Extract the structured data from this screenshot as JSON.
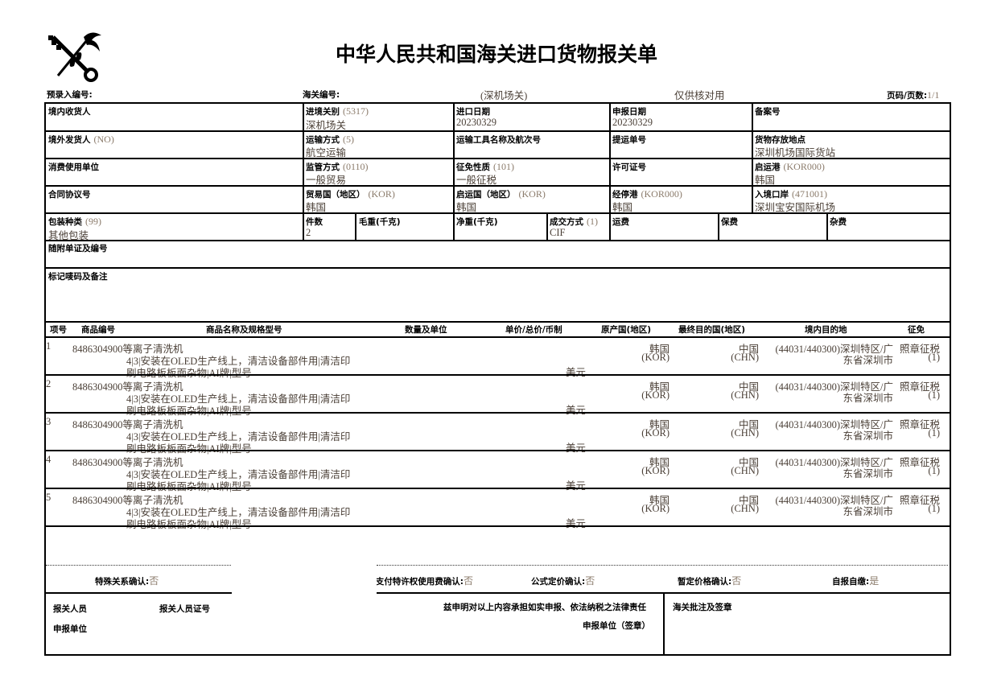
{
  "title": "中华人民共和国海关进口货物报关单",
  "logo": "customs-emblem",
  "top": {
    "pre_entry_label": "预录入编号:",
    "customs_no_label": "海关编号:",
    "customs_office": "(深机场关)",
    "check_note": "仅供核对用",
    "page_label": "页码/页数:",
    "page_value": "1/1"
  },
  "fields": {
    "consignee": {
      "label": "境内收货人"
    },
    "entry_customs": {
      "label": "进境关别",
      "code": "(5317)",
      "value": "深机场关"
    },
    "import_date": {
      "label": "进口日期",
      "value": "20230329"
    },
    "declare_date": {
      "label": "申报日期",
      "value": "20230329"
    },
    "record_no": {
      "label": "备案号"
    },
    "shipper": {
      "label": "境外发货人",
      "code": "(NO)"
    },
    "transport_mode": {
      "label": "运输方式",
      "code": "(5)",
      "value": "航空运输"
    },
    "vessel": {
      "label": "运输工具名称及航次号"
    },
    "bill_no": {
      "label": "提运单号"
    },
    "storage": {
      "label": "货物存放地点",
      "value": "深圳机场国际货站"
    },
    "consumer": {
      "label": "消费使用单位"
    },
    "supervision": {
      "label": "监管方式",
      "code": "(0110)",
      "value": "一般贸易"
    },
    "levy_nature": {
      "label": "征免性质",
      "code": "(101)",
      "value": "一般征税"
    },
    "license_no": {
      "label": "许可证号"
    },
    "departure_port": {
      "label": "启运港",
      "code": "(KOR000)",
      "value": "韩国"
    },
    "contract_no": {
      "label": "合同协议号"
    },
    "trade_country": {
      "label": "贸易国（地区）",
      "code": "(KOR)",
      "value": "韩国"
    },
    "departure_country": {
      "label": "启运国（地区）",
      "code": "(KOR)",
      "value": "韩国"
    },
    "stop_port": {
      "label": "经停港",
      "code": "(KOR000)",
      "value": "韩国"
    },
    "entry_port": {
      "label": "入境口岸",
      "code": "(471001)",
      "value": "深圳宝安国际机场"
    },
    "package_type": {
      "label": "包装种类",
      "code": "(99)",
      "value": "其他包装"
    },
    "pieces": {
      "label": "件数",
      "value": "2"
    },
    "gross_weight": {
      "label": "毛重(千克)"
    },
    "net_weight": {
      "label": "净重(千克)"
    },
    "trade_terms": {
      "label": "成交方式",
      "code": "(1)",
      "value": "CIF"
    },
    "freight": {
      "label": "运费"
    },
    "insurance": {
      "label": "保费"
    },
    "misc": {
      "label": "杂费"
    },
    "attached_docs": {
      "label": "随附单证及编号"
    },
    "marks": {
      "label": "标记唛码及备注"
    }
  },
  "items_header": [
    "项号",
    "商品编号",
    "商品名称及规格型号",
    "数量及单位",
    "单价/总价/币制",
    "原产国(地区)",
    "最终目的国(地区)",
    "境内目的地",
    "征免"
  ],
  "items": [
    {
      "no": "1",
      "code_name": "8486304900等离子清洗机",
      "spec1": "4|3|安装在OLED生产线上，清洁设备部件用|清洁印",
      "spec2": "刷电路板板面杂物|AI牌|型号",
      "currency": "美元",
      "origin": "韩国",
      "origin_code": "(KOR)",
      "dest": "中国",
      "dest_code": "(CHN)",
      "domestic1": "(44031/440300)深圳特区/广",
      "domestic2": "东省深圳市",
      "levy": "照章征税",
      "levy_code": "(1)"
    },
    {
      "no": "2",
      "code_name": "8486304900等离子清洗机",
      "spec1": "4|3|安装在OLED生产线上，清洁设备部件用|清洁印",
      "spec2": "刷电路板板面杂物|AI牌|型号",
      "currency": "美元",
      "origin": "韩国",
      "origin_code": "(KOR)",
      "dest": "中国",
      "dest_code": "(CHN)",
      "domestic1": "(44031/440300)深圳特区/广",
      "domestic2": "东省深圳市",
      "levy": "照章征税",
      "levy_code": "(1)"
    },
    {
      "no": "3",
      "code_name": "8486304900等离子清洗机",
      "spec1": "4|3|安装在OLED生产线上，清洁设备部件用|清洁印",
      "spec2": "刷电路板板面杂物|AI牌|型号",
      "currency": "美元",
      "origin": "韩国",
      "origin_code": "(KOR)",
      "dest": "中国",
      "dest_code": "(CHN)",
      "domestic1": "(44031/440300)深圳特区/广",
      "domestic2": "东省深圳市",
      "levy": "照章征税",
      "levy_code": "(1)"
    },
    {
      "no": "4",
      "code_name": "8486304900等离子清洗机",
      "spec1": "4|3|安装在OLED生产线上，清洁设备部件用|清洁印",
      "spec2": "刷电路板板面杂物|AI牌|型号",
      "currency": "美元",
      "origin": "韩国",
      "origin_code": "(KOR)",
      "dest": "中国",
      "dest_code": "(CHN)",
      "domestic1": "(44031/440300)深圳特区/广",
      "domestic2": "东省深圳市",
      "levy": "照章征税",
      "levy_code": "(1)"
    },
    {
      "no": "5",
      "code_name": "8486304900等离子清洗机",
      "spec1": "4|3|安装在OLED生产线上，清洁设备部件用|清洁印",
      "spec2": "刷电路板板面杂物|AI牌|型号",
      "currency": "美元",
      "origin": "韩国",
      "origin_code": "(KOR)",
      "dest": "中国",
      "dest_code": "(CHN)",
      "domestic1": "(44031/440300)深圳特区/广",
      "domestic2": "东省深圳市",
      "levy": "照章征税",
      "levy_code": "(1)"
    }
  ],
  "confirm": {
    "special_label": "特殊关系确认:",
    "special_value": "否",
    "royalty_label": "支付特许权使用费确认:",
    "royalty_value": "否",
    "formula_label": "公式定价确认:",
    "formula_value": "否",
    "provisional_label": "暂定价格确认:",
    "provisional_value": "否",
    "self_pay_label": "自报自缴:",
    "self_pay_value": "是"
  },
  "footer": {
    "declarant": "报关人员",
    "declarant_cert": "报关人员证号",
    "declare_unit": "申报单位",
    "statement": "兹申明对以上内容承担如实申报、依法纳税之法律责任",
    "seal": "申报单位（签章）",
    "customs_approval": "海关批注及签章"
  }
}
